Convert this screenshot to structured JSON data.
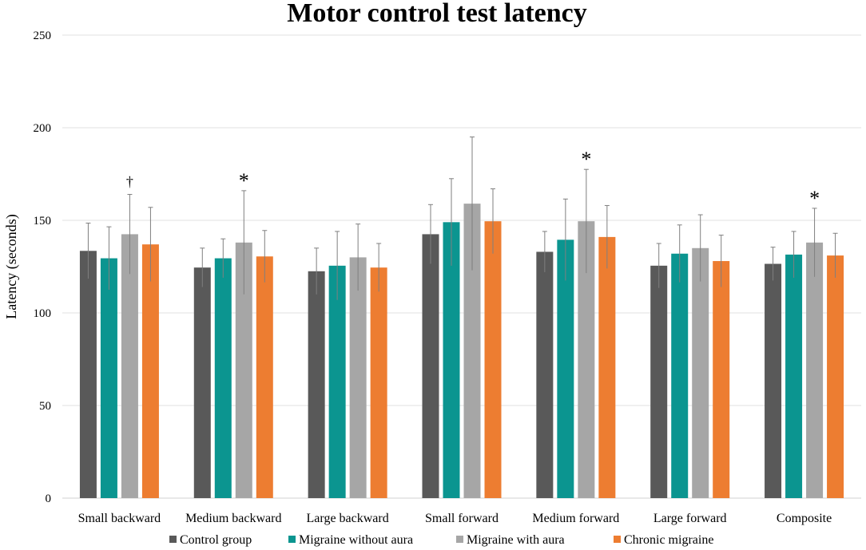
{
  "chart_data": {
    "type": "bar",
    "title": "Motor control test latency",
    "xlabel": "",
    "ylabel": "Latency (seconds)",
    "ylim": [
      0,
      250
    ],
    "yticks": [
      "0",
      "50",
      "100",
      "150",
      "200",
      "250"
    ],
    "grid": true,
    "legend_position": "bottom",
    "categories": [
      "Small backward",
      "Medium backward",
      "Large backward",
      "Small forward",
      "Medium forward",
      "Large forward",
      "Composite"
    ],
    "series": [
      {
        "name": "Control group",
        "color": "#595959",
        "values": [
          133.5,
          124.5,
          122.5,
          142.5,
          133,
          125.5,
          126.5
        ],
        "errors": [
          15,
          10.5,
          12.5,
          16,
          11,
          12,
          9
        ]
      },
      {
        "name": "Migraine without aura",
        "color": "#0b9590",
        "values": [
          129.5,
          129.5,
          125.5,
          149,
          139.5,
          132,
          131.5
        ],
        "errors": [
          17,
          10.5,
          18.5,
          23.5,
          22,
          15.5,
          12.5
        ]
      },
      {
        "name": "Migraine with aura",
        "color": "#a6a6a6",
        "values": [
          142.5,
          138,
          130,
          159,
          149.5,
          135,
          138
        ],
        "errors": [
          21.5,
          28,
          18,
          36,
          28,
          18,
          18.5
        ]
      },
      {
        "name": "Chronic migraine",
        "color": "#ed7d31",
        "values": [
          137,
          130.5,
          124.5,
          149.5,
          141,
          128,
          131
        ],
        "errors": [
          20,
          14,
          13,
          17.5,
          17,
          14,
          12
        ]
      }
    ],
    "annotations": [
      {
        "text": "†",
        "category": "Small backward",
        "series": "Migraine with aura"
      },
      {
        "text": "*",
        "category": "Medium backward",
        "series": "Migraine with aura"
      },
      {
        "text": "*",
        "category": "Medium forward",
        "series": "Migraine with aura"
      },
      {
        "text": "*",
        "category": "Composite",
        "series": "Migraine with aura"
      }
    ]
  }
}
